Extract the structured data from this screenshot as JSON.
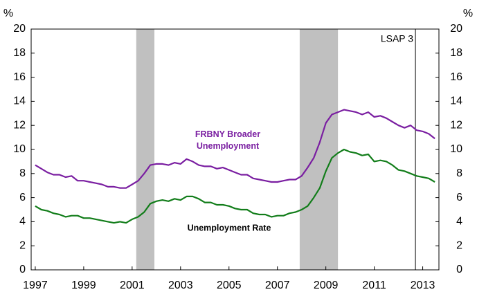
{
  "chart_data": {
    "type": "line",
    "y_unit": "%",
    "y2_unit": "%",
    "x": [
      1997,
      1997.25,
      1997.5,
      1997.75,
      1998,
      1998.25,
      1998.5,
      1998.75,
      1999,
      1999.25,
      1999.5,
      1999.75,
      2000,
      2000.25,
      2000.5,
      2000.75,
      2001,
      2001.25,
      2001.5,
      2001.75,
      2002,
      2002.25,
      2002.5,
      2002.75,
      2003,
      2003.25,
      2003.5,
      2003.75,
      2004,
      2004.25,
      2004.5,
      2004.75,
      2005,
      2005.25,
      2005.5,
      2005.75,
      2006,
      2006.25,
      2006.5,
      2006.75,
      2007,
      2007.25,
      2007.5,
      2007.75,
      2008,
      2008.25,
      2008.5,
      2008.75,
      2009,
      2009.25,
      2009.5,
      2009.75,
      2010,
      2010.25,
      2010.5,
      2010.75,
      2011,
      2011.25,
      2011.5,
      2011.75,
      2012,
      2012.25,
      2012.5,
      2012.75,
      2013,
      2013.25,
      2013.5
    ],
    "series": [
      {
        "name": "FRBNY Broader Unemployment",
        "color": "#7a1ea1",
        "values": [
          8.7,
          8.4,
          8.1,
          7.9,
          7.9,
          7.7,
          7.8,
          7.4,
          7.4,
          7.3,
          7.2,
          7.1,
          6.9,
          6.9,
          6.8,
          6.8,
          7.1,
          7.4,
          8.0,
          8.7,
          8.8,
          8.8,
          8.7,
          8.9,
          8.8,
          9.2,
          9.0,
          8.7,
          8.6,
          8.6,
          8.4,
          8.5,
          8.3,
          8.1,
          7.9,
          7.9,
          7.6,
          7.5,
          7.4,
          7.3,
          7.3,
          7.4,
          7.5,
          7.5,
          7.8,
          8.5,
          9.3,
          10.6,
          12.2,
          12.9,
          13.1,
          13.3,
          13.2,
          13.1,
          12.9,
          13.1,
          12.7,
          12.8,
          12.6,
          12.3,
          12.0,
          11.8,
          12.0,
          11.6,
          11.5,
          11.3,
          10.9
        ]
      },
      {
        "name": "Unemployment Rate",
        "color": "#127d1a",
        "values": [
          5.3,
          5.0,
          4.9,
          4.7,
          4.6,
          4.4,
          4.5,
          4.5,
          4.3,
          4.3,
          4.2,
          4.1,
          4.0,
          3.9,
          4.0,
          3.9,
          4.2,
          4.4,
          4.8,
          5.5,
          5.7,
          5.8,
          5.7,
          5.9,
          5.8,
          6.1,
          6.1,
          5.9,
          5.6,
          5.6,
          5.4,
          5.4,
          5.3,
          5.1,
          5.0,
          5.0,
          4.7,
          4.6,
          4.6,
          4.4,
          4.5,
          4.5,
          4.7,
          4.8,
          5.0,
          5.3,
          6.0,
          6.8,
          8.2,
          9.3,
          9.7,
          10.0,
          9.8,
          9.7,
          9.5,
          9.6,
          9.0,
          9.1,
          9.0,
          8.7,
          8.3,
          8.2,
          8.0,
          7.8,
          7.7,
          7.6,
          7.3
        ]
      }
    ],
    "xlim": [
      1996.83,
      2013.67
    ],
    "xticks": [
      1997,
      1999,
      2001,
      2003,
      2005,
      2007,
      2009,
      2011,
      2013
    ],
    "ylim": [
      0,
      20
    ],
    "yticks": [
      0,
      2,
      4,
      6,
      8,
      10,
      12,
      14,
      16,
      18,
      20
    ],
    "y2lim": [
      0,
      20
    ],
    "y2ticks": [
      0,
      2,
      4,
      6,
      8,
      10,
      12,
      14,
      16,
      18,
      20
    ],
    "shaded_periods": [
      [
        2001.17,
        2001.92
      ],
      [
        2007.92,
        2009.5
      ]
    ],
    "shade_color": "#c0c0c0",
    "event_line": {
      "x": 2012.7,
      "label": "LSAP 3"
    }
  }
}
